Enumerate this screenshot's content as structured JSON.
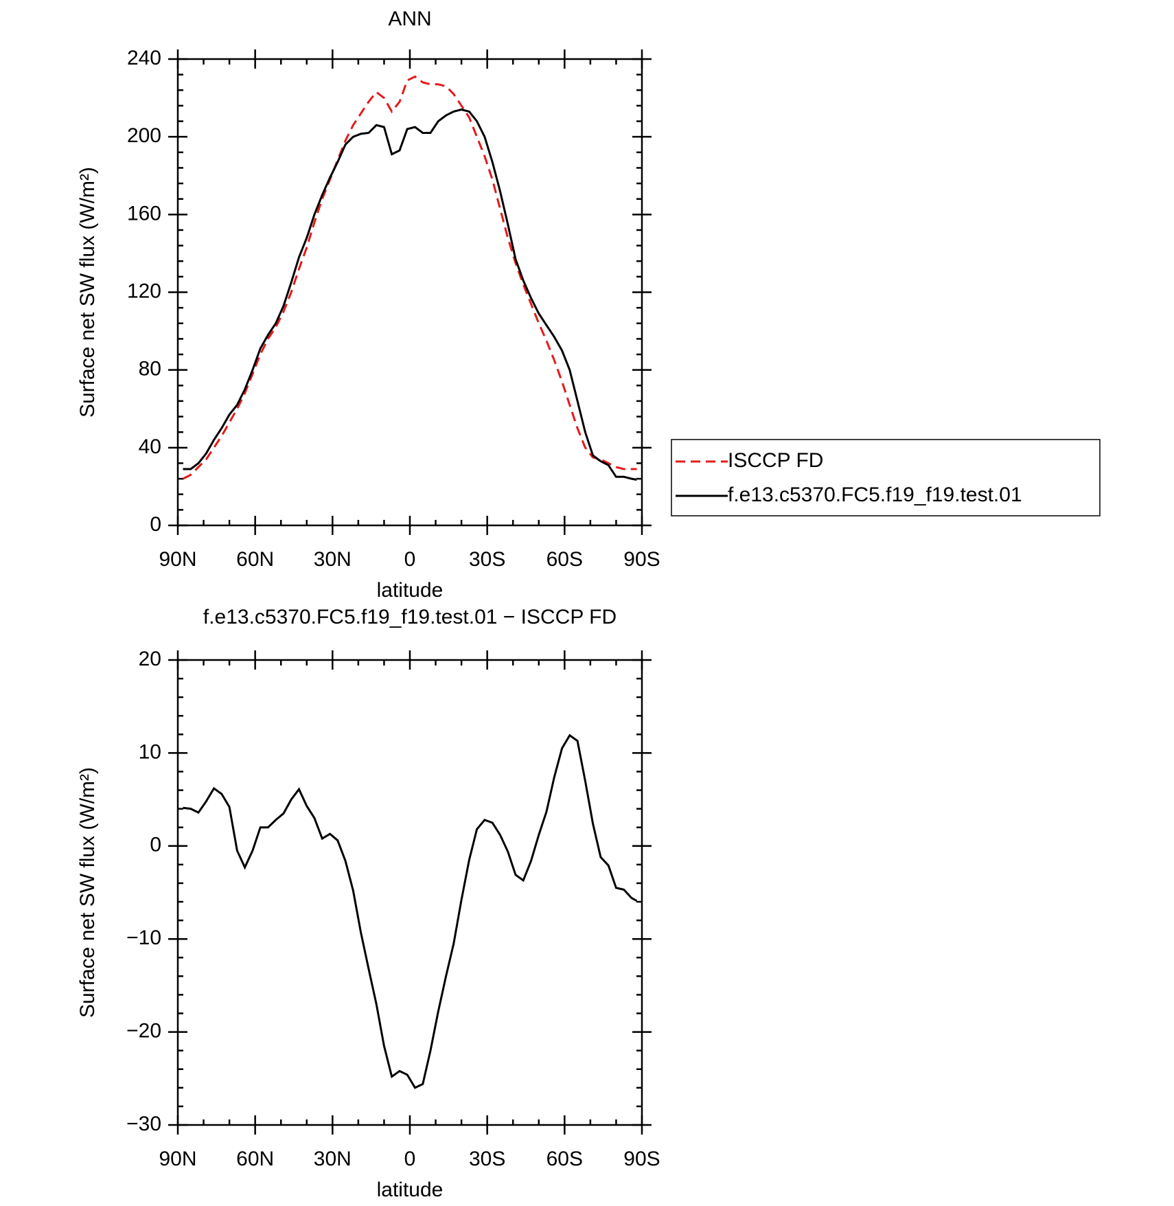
{
  "chart_data": [
    {
      "type": "line",
      "title": "ANN",
      "xlabel": "latitude",
      "ylabel": "Surface net SW flux (W/m²)",
      "x": [
        88,
        85,
        82,
        79,
        76,
        73,
        70,
        67,
        64,
        61,
        58,
        55,
        52,
        49,
        46,
        43,
        40,
        37,
        34,
        31,
        28,
        25,
        22,
        19,
        16,
        13,
        10,
        7,
        4,
        1,
        -2,
        -5,
        -8,
        -11,
        -14,
        -17,
        -20,
        -23,
        -26,
        -29,
        -32,
        -35,
        -38,
        -41,
        -44,
        -47,
        -50,
        -53,
        -56,
        -59,
        -62,
        -65,
        -68,
        -71,
        -74,
        -77,
        -80,
        -83,
        -86,
        -88
      ],
      "series": [
        {
          "name": "ISCCP FD",
          "color": "#e41a1c",
          "line_style": "dashed",
          "values": [
            24,
            26,
            30,
            34,
            40,
            46,
            53,
            60,
            68,
            78,
            88,
            96,
            102,
            110,
            120,
            132,
            143,
            156,
            168,
            178,
            188,
            198,
            206,
            212,
            218,
            223,
            220,
            213,
            218,
            229,
            231,
            228,
            227,
            227,
            226,
            222,
            216,
            210,
            200,
            190,
            178,
            163,
            148,
            135,
            124,
            114,
            104,
            95,
            85,
            74,
            62,
            50,
            40,
            35,
            34,
            32,
            30,
            29,
            29,
            29
          ]
        },
        {
          "name": "f.e13.c5370.FC5.f19_f19.test.01",
          "color": "#000000",
          "line_style": "solid",
          "values": [
            29,
            29,
            32,
            37,
            44,
            50,
            57,
            62,
            70,
            80,
            91,
            98,
            104,
            113,
            125,
            138,
            148,
            160,
            170,
            179,
            187,
            196,
            200,
            201.5,
            202,
            206,
            205,
            191,
            193,
            204,
            205,
            202,
            202,
            208,
            211,
            213,
            214,
            213,
            208,
            200,
            187,
            172,
            155,
            137,
            126,
            117,
            109,
            103,
            97,
            90,
            80,
            64,
            48,
            36,
            33,
            31,
            25,
            25,
            24,
            23.5
          ]
        }
      ],
      "xlim": [
        90,
        -90
      ],
      "xticks": [
        {
          "value": 90,
          "label": "90N"
        },
        {
          "value": 60,
          "label": "60N"
        },
        {
          "value": 30,
          "label": "30N"
        },
        0,
        {
          "value": -30,
          "label": "30S"
        },
        {
          "value": -60,
          "label": "60S"
        },
        {
          "value": -90,
          "label": "90S"
        }
      ],
      "ylim": [
        0,
        240
      ],
      "yticks": [
        0,
        40,
        80,
        120,
        160,
        200,
        240
      ],
      "legend": "right"
    },
    {
      "type": "line",
      "title": "f.e13.c5370.FC5.f19_f19.test.01 − ISCCP FD",
      "xlabel": "latitude",
      "ylabel": "Surface net SW flux (W/m²)",
      "x": [
        88,
        85,
        82,
        79,
        76,
        73,
        70,
        67,
        64,
        61,
        58,
        55,
        52,
        49,
        46,
        43,
        40,
        37,
        34,
        31,
        28,
        25,
        22,
        19,
        16,
        13,
        10,
        7,
        4,
        1,
        -2,
        -5,
        -8,
        -11,
        -14,
        -17,
        -20,
        -23,
        -26,
        -29,
        -32,
        -35,
        -38,
        -41,
        -44,
        -47,
        -50,
        -53,
        -56,
        -59,
        -62,
        -65,
        -68,
        -71,
        -74,
        -77,
        -80,
        -83,
        -86,
        -88
      ],
      "color": "#000000",
      "values": [
        4.1,
        4.0,
        3.6,
        4.8,
        6.2,
        5.6,
        4.2,
        -0.5,
        -2.3,
        -0.5,
        2.0,
        2.0,
        2.8,
        3.5,
        5.0,
        6.1,
        4.3,
        3.0,
        0.8,
        1.3,
        0.6,
        -1.6,
        -4.8,
        -9.3,
        -13.2,
        -17,
        -21.5,
        -24.8,
        -24.2,
        -24.6,
        -26,
        -25.6,
        -22,
        -17.8,
        -14,
        -10.5,
        -5.8,
        -1.5,
        1.8,
        2.8,
        2.5,
        1.2,
        -0.6,
        -3.1,
        -3.7,
        -1.6,
        1.2,
        3.7,
        7.4,
        10.5,
        11.9,
        11.3,
        7.0,
        2.4,
        -1.2,
        -2.1,
        -4.5,
        -4.7,
        -5.6,
        -5.9
      ],
      "xlim": [
        90,
        -90
      ],
      "xticks": [
        {
          "value": 90,
          "label": "90N"
        },
        {
          "value": 60,
          "label": "60N"
        },
        {
          "value": 30,
          "label": "30N"
        },
        0,
        {
          "value": -30,
          "label": "30S"
        },
        {
          "value": -60,
          "label": "60S"
        },
        {
          "value": -90,
          "label": "90S"
        }
      ],
      "ylim": [
        -30,
        20
      ],
      "yticks": [
        {
          "value": -30,
          "label": "−30"
        },
        {
          "value": -20,
          "label": "−20"
        },
        {
          "value": -10,
          "label": "−10"
        },
        0,
        10,
        20
      ]
    }
  ]
}
